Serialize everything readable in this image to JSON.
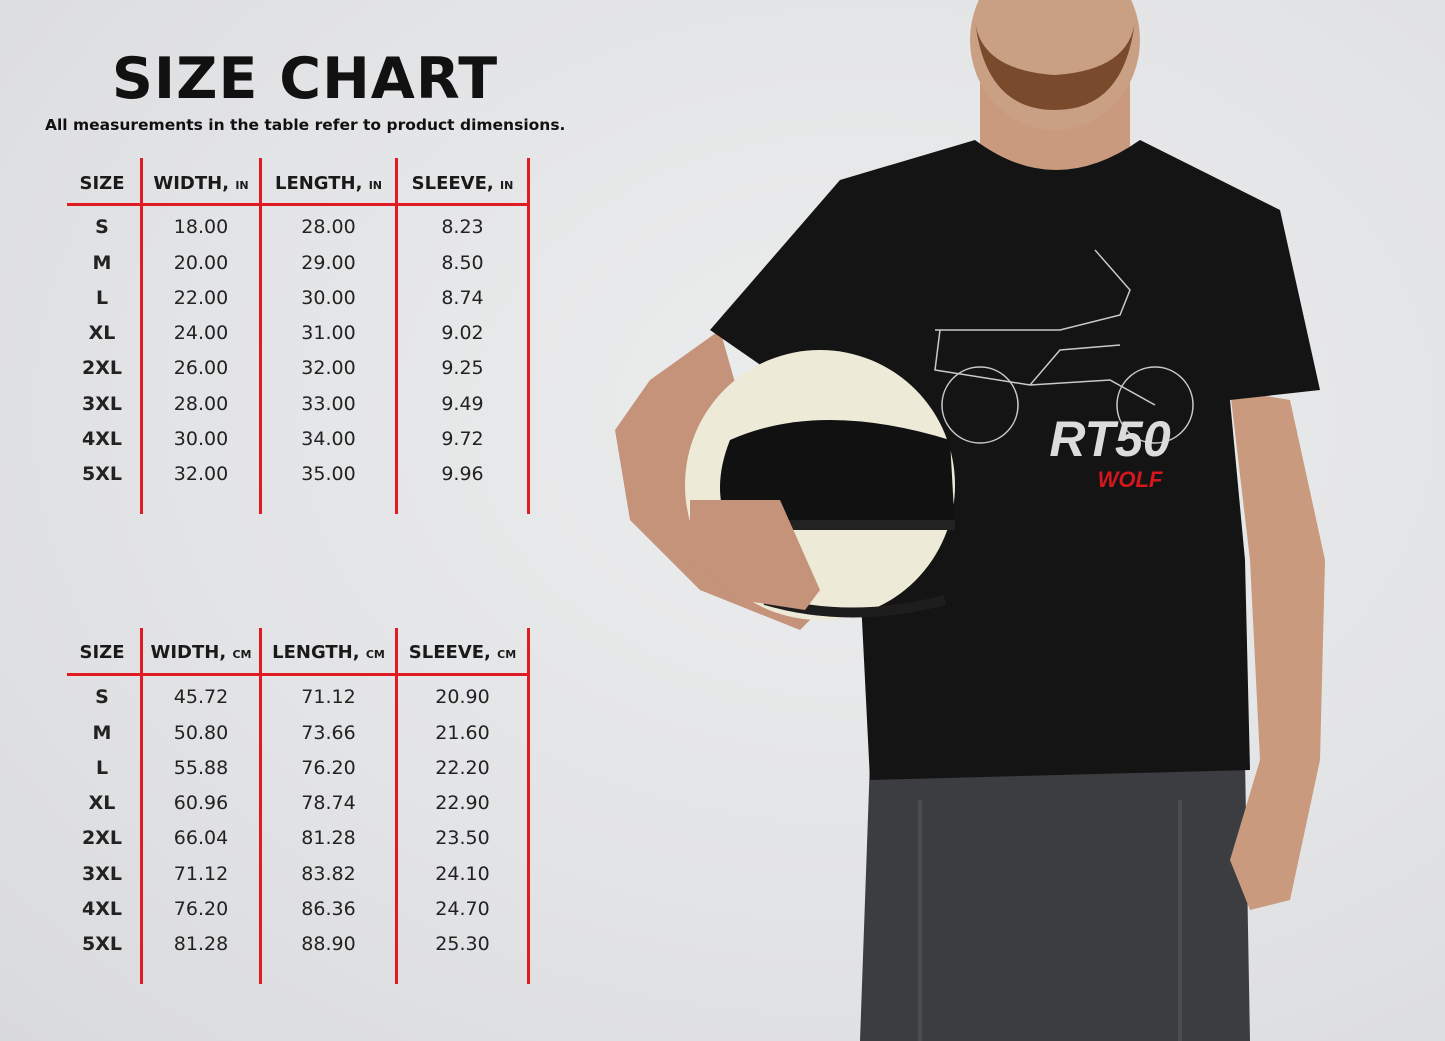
{
  "title": "SIZE CHART",
  "subtitle": "All measurements in the table refer to product dimensions.",
  "tables": [
    {
      "headers": [
        {
          "label": "SIZE",
          "unit": ""
        },
        {
          "label": "WIDTH,",
          "unit": "IN"
        },
        {
          "label": "LENGTH,",
          "unit": "IN"
        },
        {
          "label": "SLEEVE,",
          "unit": "IN"
        }
      ],
      "rows": [
        [
          "S",
          "18.00",
          "28.00",
          "8.23"
        ],
        [
          "M",
          "20.00",
          "29.00",
          "8.50"
        ],
        [
          "L",
          "22.00",
          "30.00",
          "8.74"
        ],
        [
          "XL",
          "24.00",
          "31.00",
          "9.02"
        ],
        [
          "2XL",
          "26.00",
          "32.00",
          "9.25"
        ],
        [
          "3XL",
          "28.00",
          "33.00",
          "9.49"
        ],
        [
          "4XL",
          "30.00",
          "34.00",
          "9.72"
        ],
        [
          "5XL",
          "32.00",
          "35.00",
          "9.96"
        ]
      ]
    },
    {
      "headers": [
        {
          "label": "SIZE",
          "unit": ""
        },
        {
          "label": "WIDTH,",
          "unit": "CM"
        },
        {
          "label": "LENGTH,",
          "unit": "CM"
        },
        {
          "label": "SLEEVE,",
          "unit": "CM"
        }
      ],
      "rows": [
        [
          "S",
          "45.72",
          "71.12",
          "20.90"
        ],
        [
          "M",
          "50.80",
          "73.66",
          "21.60"
        ],
        [
          "L",
          "55.88",
          "76.20",
          "22.20"
        ],
        [
          "XL",
          "60.96",
          "78.74",
          "22.90"
        ],
        [
          "2XL",
          "66.04",
          "81.28",
          "23.50"
        ],
        [
          "3XL",
          "71.12",
          "83.82",
          "24.10"
        ],
        [
          "4XL",
          "76.20",
          "86.36",
          "24.70"
        ],
        [
          "5XL",
          "81.28",
          "88.90",
          "25.30"
        ]
      ]
    }
  ],
  "shirt_print": {
    "model": "RT50",
    "name": "WOLF"
  },
  "colors": {
    "accent_red": "#e01b22",
    "shirt": "#141414",
    "print_blue": "#2f78c4",
    "print_red": "#d4161d"
  }
}
